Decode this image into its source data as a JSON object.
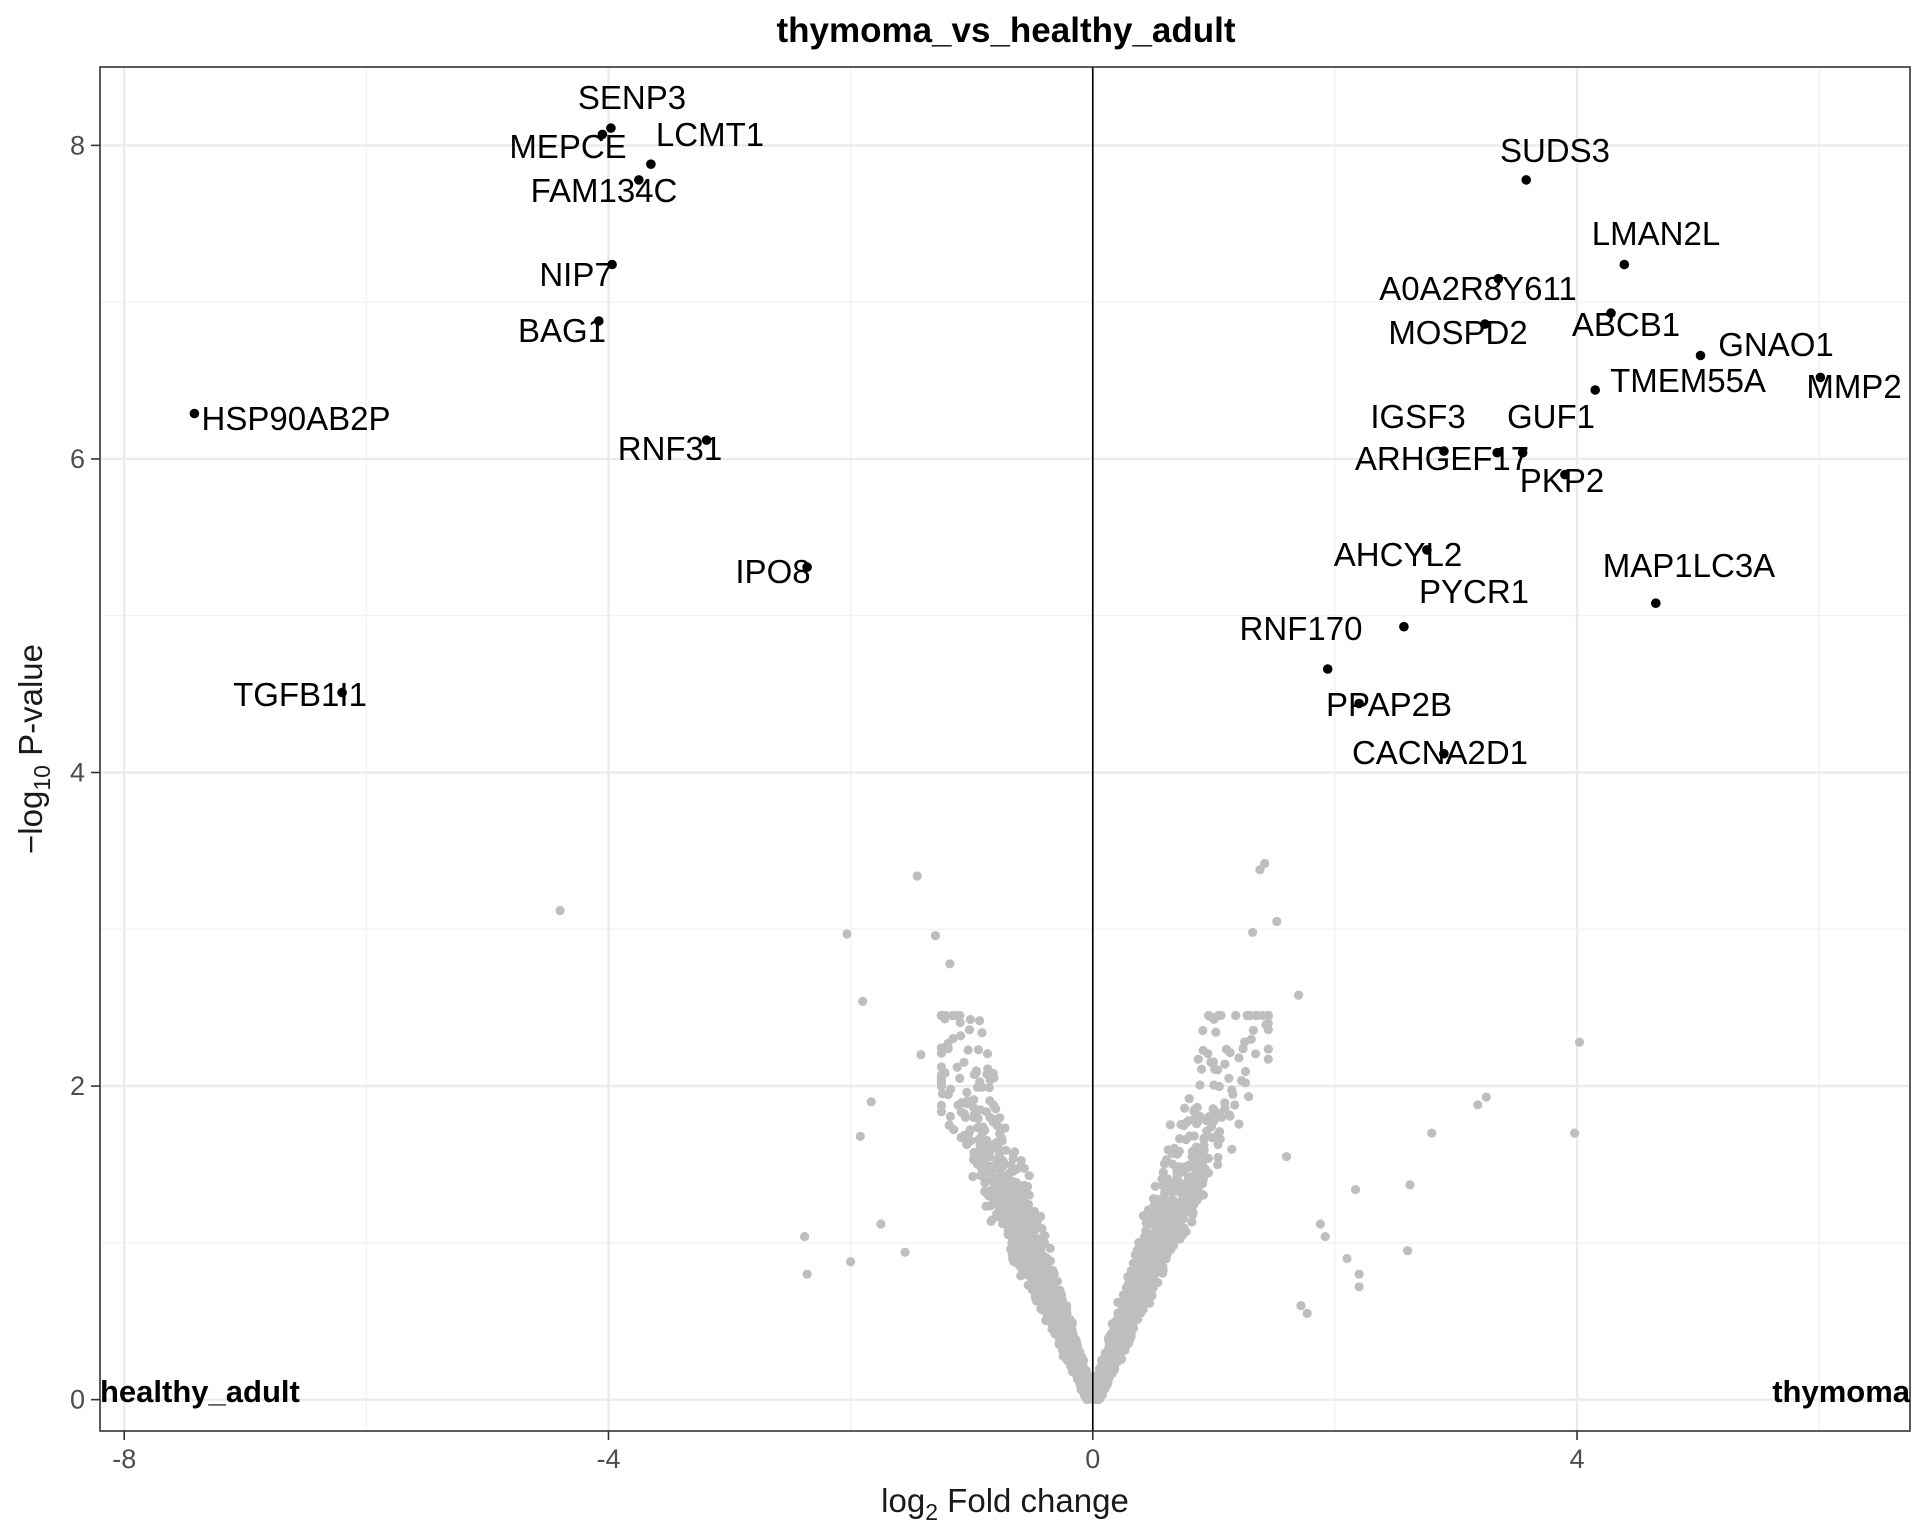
{
  "chart_data": {
    "type": "scatter",
    "title": "thymoma_vs_healthy_adult",
    "xlabel_prefix": "log",
    "xlabel_sub": "2",
    "xlabel_suffix": " Fold change",
    "ylabel_prefix": "−log",
    "ylabel_sub": "10",
    "ylabel_suffix": " P-value",
    "xlim": [
      -8.2,
      6.75
    ],
    "ylim": [
      -0.2,
      8.5
    ],
    "xticks": [
      -8,
      -4,
      0,
      4
    ],
    "xtick_labels": [
      "-8",
      "-4",
      "0",
      "4"
    ],
    "yticks": [
      0,
      2,
      4,
      6,
      8
    ],
    "ytick_labels": [
      "0",
      "2",
      "4",
      "6",
      "8"
    ],
    "x_minor": [
      -6,
      -2,
      2,
      6
    ],
    "y_minor": [
      1,
      3,
      5,
      7
    ],
    "vline": 0,
    "grid": true,
    "corner_left": "healthy_adult",
    "corner_right": "thymoma",
    "significant_color": "#000000",
    "background_color": "#bebebe",
    "significant": [
      {
        "label": "SENP3",
        "x": -3.98,
        "y": 8.11
      },
      {
        "label": "MEPCE",
        "x": -4.05,
        "y": 8.07
      },
      {
        "label": "LCMT1",
        "x": -3.65,
        "y": 7.88
      },
      {
        "label": "FAM134C",
        "x": -3.75,
        "y": 7.78
      },
      {
        "label": "NIP7",
        "x": -3.97,
        "y": 7.24
      },
      {
        "label": "BAG1",
        "x": -4.08,
        "y": 6.88
      },
      {
        "label": "HSP90AB2P",
        "x": -7.42,
        "y": 6.29
      },
      {
        "label": "RNF31",
        "x": -3.19,
        "y": 6.12
      },
      {
        "label": "IPO8",
        "x": -2.36,
        "y": 5.31
      },
      {
        "label": "TGFB1I1",
        "x": -6.2,
        "y": 4.51
      },
      {
        "label": "SUDS3",
        "x": 3.58,
        "y": 7.78
      },
      {
        "label": "LMAN2L",
        "x": 4.39,
        "y": 7.24
      },
      {
        "label": "A0A2R8Y611",
        "x": 3.35,
        "y": 7.15
      },
      {
        "label": "ABCB1",
        "x": 4.28,
        "y": 6.93
      },
      {
        "label": "MOSPD2",
        "x": 3.24,
        "y": 6.86
      },
      {
        "label": "GNAO1",
        "x": 5.02,
        "y": 6.66
      },
      {
        "label": "MMP2",
        "x": 6.01,
        "y": 6.52
      },
      {
        "label": "TMEM55A",
        "x": 4.15,
        "y": 6.44
      },
      {
        "label": "IGSF3",
        "x": 2.9,
        "y": 6.05
      },
      {
        "label": "GUF1",
        "x": 3.34,
        "y": 6.04
      },
      {
        "label": "ARHGEF17",
        "x": 3.55,
        "y": 6.04
      },
      {
        "label": "PKP2",
        "x": 3.9,
        "y": 5.9
      },
      {
        "label": "AHCYL2",
        "x": 2.76,
        "y": 5.42
      },
      {
        "label": "MAP1LC3A",
        "x": 4.65,
        "y": 5.08
      },
      {
        "label": "PYCR1",
        "x": 2.57,
        "y": 4.93
      },
      {
        "label": "RNF170",
        "x": 1.94,
        "y": 4.66
      },
      {
        "label": "PPAP2B",
        "x": 2.2,
        "y": 4.44
      },
      {
        "label": "CACNA2D1",
        "x": 2.9,
        "y": 4.12
      }
    ],
    "outliers_nonsig": [
      {
        "x": -4.4,
        "y": 3.12
      },
      {
        "x": -1.45,
        "y": 3.34
      },
      {
        "x": -2.03,
        "y": 2.97
      },
      {
        "x": -1.3,
        "y": 2.96
      },
      {
        "x": -1.18,
        "y": 2.78
      },
      {
        "x": -1.9,
        "y": 2.54
      },
      {
        "x": -1.42,
        "y": 2.2
      },
      {
        "x": -1.12,
        "y": 2.12
      },
      {
        "x": -2.38,
        "y": 1.04
      },
      {
        "x": -2.36,
        "y": 0.8
      },
      {
        "x": -2.0,
        "y": 0.88
      },
      {
        "x": -1.75,
        "y": 1.12
      },
      {
        "x": -1.55,
        "y": 0.94
      },
      {
        "x": 1.42,
        "y": 3.42
      },
      {
        "x": 1.38,
        "y": 3.38
      },
      {
        "x": 1.32,
        "y": 2.98
      },
      {
        "x": 1.52,
        "y": 3.05
      },
      {
        "x": 1.7,
        "y": 2.58
      },
      {
        "x": 4.02,
        "y": 2.28
      },
      {
        "x": 3.25,
        "y": 1.93
      },
      {
        "x": 3.18,
        "y": 1.88
      },
      {
        "x": 3.98,
        "y": 1.7
      },
      {
        "x": 2.8,
        "y": 1.7
      },
      {
        "x": 2.17,
        "y": 1.34
      },
      {
        "x": 2.62,
        "y": 1.37
      },
      {
        "x": 1.88,
        "y": 1.12
      },
      {
        "x": 2.1,
        "y": 0.9
      },
      {
        "x": 2.2,
        "y": 0.8
      },
      {
        "x": 2.2,
        "y": 0.72
      },
      {
        "x": 2.6,
        "y": 0.95
      },
      {
        "x": 1.72,
        "y": 0.6
      },
      {
        "x": 1.77,
        "y": 0.55
      },
      {
        "x": 1.92,
        "y": 1.04
      },
      {
        "x": 1.6,
        "y": 1.55
      },
      {
        "x": -1.92,
        "y": 1.68
      },
      {
        "x": -1.83,
        "y": 1.9
      }
    ]
  }
}
